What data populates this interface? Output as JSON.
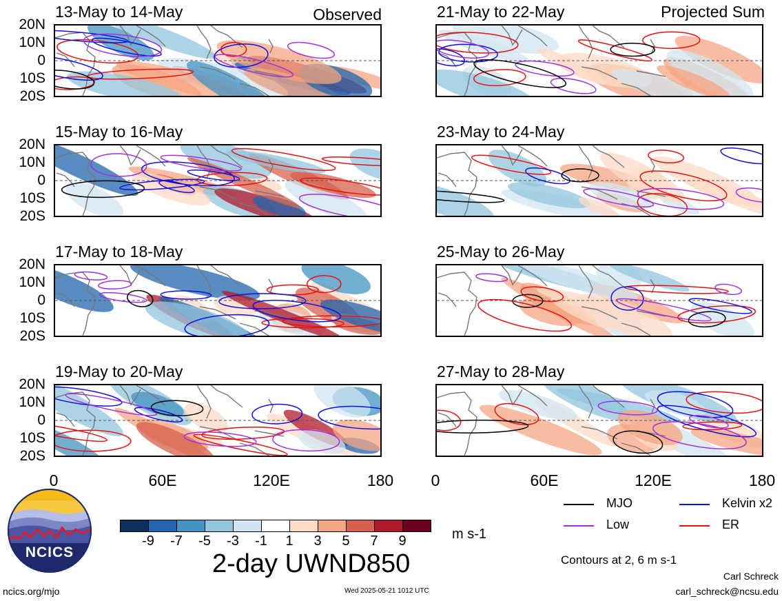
{
  "panels_left": [
    {
      "title": "13-May to 14-May",
      "label": "Observed"
    },
    {
      "title": "15-May to 16-May",
      "label": ""
    },
    {
      "title": "17-May to 18-May",
      "label": ""
    },
    {
      "title": "19-May to 20-May",
      "label": ""
    }
  ],
  "panels_right": [
    {
      "title": "21-May to 22-May",
      "label": "Projected Sum"
    },
    {
      "title": "23-May to 24-May",
      "label": ""
    },
    {
      "title": "25-May to 26-May",
      "label": ""
    },
    {
      "title": "27-May to 28-May",
      "label": ""
    }
  ],
  "lat_labels": [
    "20N",
    "10N",
    "0",
    "10S",
    "20S"
  ],
  "lon_labels": [
    "0",
    "60E",
    "120E",
    "180"
  ],
  "colorbar": {
    "colors": [
      "#0b2f5e",
      "#2166ac",
      "#4393c3",
      "#92c5de",
      "#d1e5f0",
      "#ffffff",
      "#fddbc7",
      "#f4a582",
      "#d6604d",
      "#b2182b",
      "#67001f"
    ],
    "labels": [
      "-9",
      "-7",
      "-5",
      "-3",
      "-1",
      "1",
      "3",
      "5",
      "7",
      "9"
    ],
    "units": "m s-1",
    "title": "2-day UWND850"
  },
  "legend": {
    "mjo": "MJO",
    "kelvin": "Kelvin x2",
    "low": "Low",
    "er": "ER",
    "colors": {
      "mjo": "#000000",
      "kelvin": "#1010e0",
      "low": "#a030e0",
      "er": "#e81010"
    },
    "contours_note": "Contours at 2, 6 m s-1"
  },
  "logo": {
    "text": "NCICS"
  },
  "footer": {
    "website": "ncics.org/mjo",
    "timestamp": "Wed 2025-05-21 1012 UTC",
    "author": "Carl Schreck",
    "email": "carl_schreck@ncsu.edu"
  }
}
